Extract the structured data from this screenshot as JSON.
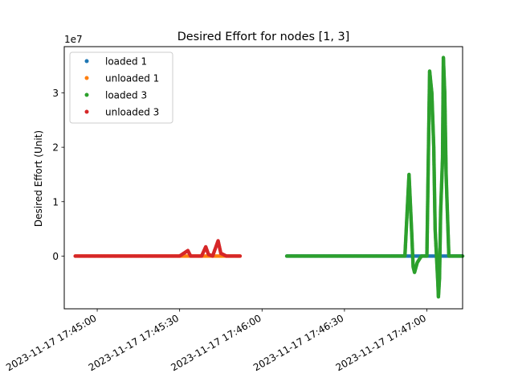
{
  "chart_data": {
    "type": "scatter",
    "title": "Desired Effort for nodes [1, 3]",
    "ylabel": "Desired Effort (Unit)",
    "xlabel": "",
    "y_offset_label": "1e7",
    "y_scale_multiplier": 10000000,
    "xlim": [
      "2023-11-17 17:44:48",
      "2023-11-17 17:47:13"
    ],
    "ylim": [
      -9700000,
      38500000
    ],
    "x_ticks": [
      {
        "value": "2023-11-17 17:45:00",
        "label": "2023-11-17 17:45:00"
      },
      {
        "value": "2023-11-17 17:45:30",
        "label": "2023-11-17 17:45:30"
      },
      {
        "value": "2023-11-17 17:46:00",
        "label": "2023-11-17 17:46:00"
      },
      {
        "value": "2023-11-17 17:46:30",
        "label": "2023-11-17 17:46:30"
      },
      {
        "value": "2023-11-17 17:47:00",
        "label": "2023-11-17 17:47:00"
      }
    ],
    "y_ticks": [
      {
        "value": 0,
        "label": "0"
      },
      {
        "value": 10000000,
        "label": "1"
      },
      {
        "value": 20000000,
        "label": "2"
      },
      {
        "value": 30000000,
        "label": "3"
      }
    ],
    "grid": false,
    "legend_position": "top-left",
    "series": [
      {
        "name": "loaded 1",
        "color": "#1f77b4",
        "points": [
          [
            "2023-11-17 17:46:09",
            0
          ],
          [
            "2023-11-17 17:46:20",
            0
          ],
          [
            "2023-11-17 17:46:30",
            0
          ],
          [
            "2023-11-17 17:46:40",
            0
          ],
          [
            "2023-11-17 17:46:50",
            0
          ],
          [
            "2023-11-17 17:47:00",
            0
          ],
          [
            "2023-11-17 17:47:07",
            0
          ],
          [
            "2023-11-17 17:47:13",
            0
          ]
        ]
      },
      {
        "name": "unloaded 1",
        "color": "#ff7f0e",
        "points": [
          [
            "2023-11-17 17:44:52",
            0
          ],
          [
            "2023-11-17 17:45:00",
            0
          ],
          [
            "2023-11-17 17:45:10",
            0
          ],
          [
            "2023-11-17 17:45:20",
            0
          ],
          [
            "2023-11-17 17:45:27",
            0
          ],
          [
            "2023-11-17 17:45:40",
            0
          ],
          [
            "2023-11-17 17:45:52",
            0
          ]
        ]
      },
      {
        "name": "loaded 3",
        "color": "#2ca02c",
        "points": [
          [
            "2023-11-17 17:46:09",
            0
          ],
          [
            "2023-11-17 17:46:20",
            0
          ],
          [
            "2023-11-17 17:46:30",
            0
          ],
          [
            "2023-11-17 17:46:40",
            0
          ],
          [
            "2023-11-17 17:46:47",
            0
          ],
          [
            "2023-11-17 17:46:52",
            0
          ],
          [
            "2023-11-17 17:46:53.5",
            15000000
          ],
          [
            "2023-11-17 17:46:54.5",
            4000000
          ],
          [
            "2023-11-17 17:46:55",
            -2000000
          ],
          [
            "2023-11-17 17:46:55.5",
            -3000000
          ],
          [
            "2023-11-17 17:46:56.5",
            -1200000
          ],
          [
            "2023-11-17 17:46:58",
            0
          ],
          [
            "2023-11-17 17:47:00",
            0
          ],
          [
            "2023-11-17 17:47:01",
            34000000
          ],
          [
            "2023-11-17 17:47:01.8",
            30000000
          ],
          [
            "2023-11-17 17:47:02.5",
            20000000
          ],
          [
            "2023-11-17 17:47:03",
            5000000
          ],
          [
            "2023-11-17 17:47:03.5",
            0
          ],
          [
            "2023-11-17 17:47:04",
            -5000000
          ],
          [
            "2023-11-17 17:47:04.2",
            -7500000
          ],
          [
            "2023-11-17 17:47:04.6",
            -4000000
          ],
          [
            "2023-11-17 17:47:05",
            8000000
          ],
          [
            "2023-11-17 17:47:05.7",
            18000000
          ],
          [
            "2023-11-17 17:47:06",
            36500000
          ],
          [
            "2023-11-17 17:47:06.5",
            30000000
          ],
          [
            "2023-11-17 17:47:07",
            15000000
          ],
          [
            "2023-11-17 17:47:08",
            0
          ],
          [
            "2023-11-17 17:47:10",
            0
          ],
          [
            "2023-11-17 17:47:13",
            0
          ]
        ]
      },
      {
        "name": "unloaded 3",
        "color": "#d62728",
        "points": [
          [
            "2023-11-17 17:44:52",
            0
          ],
          [
            "2023-11-17 17:45:00",
            0
          ],
          [
            "2023-11-17 17:45:10",
            0
          ],
          [
            "2023-11-17 17:45:20",
            0
          ],
          [
            "2023-11-17 17:45:30",
            0
          ],
          [
            "2023-11-17 17:45:33",
            1000000
          ],
          [
            "2023-11-17 17:45:34",
            0
          ],
          [
            "2023-11-17 17:45:38",
            0
          ],
          [
            "2023-11-17 17:45:39.5",
            1700000
          ],
          [
            "2023-11-17 17:45:40.5",
            300000
          ],
          [
            "2023-11-17 17:45:42",
            0
          ],
          [
            "2023-11-17 17:45:44",
            2800000
          ],
          [
            "2023-11-17 17:45:45",
            500000
          ],
          [
            "2023-11-17 17:45:47",
            0
          ],
          [
            "2023-11-17 17:45:52",
            0
          ]
        ]
      }
    ]
  }
}
